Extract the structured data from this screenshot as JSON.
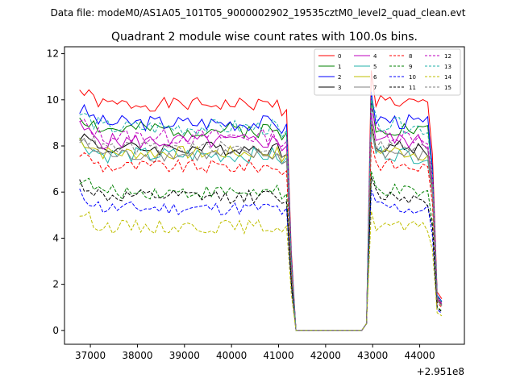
{
  "suptitle": "Data file: modeM0/AS1A05_101T05_9000002902_19535cztM0_level2_quad_clean.evt",
  "chart_data": {
    "type": "line",
    "title": "Quadrant 2 module wise count rates with 100.0s bins.",
    "xlabel": "",
    "ylabel": "",
    "offset_text": "+2.951e8",
    "xlim": [
      36450,
      44950
    ],
    "ylim": [
      -0.6,
      12.3
    ],
    "xticks": [
      37000,
      38000,
      39000,
      40000,
      41000,
      42000,
      43000,
      44000
    ],
    "yticks": [
      0,
      2,
      4,
      6,
      8,
      10,
      12
    ],
    "xtick_labels": [
      "37000",
      "38000",
      "39000",
      "40000",
      "41000",
      "42000",
      "43000",
      "44000"
    ],
    "ytick_labels": [
      "0",
      "2",
      "4",
      "6",
      "8",
      "10",
      "12"
    ],
    "grid": false,
    "legend_position": "top-right",
    "x_start": 36770,
    "bin": 100,
    "series": [
      {
        "name": "0",
        "color": "#ff0000",
        "dash": "solid",
        "level": 9.8,
        "amp": 0.3,
        "seed": 1
      },
      {
        "name": "1",
        "color": "#008000",
        "dash": "solid",
        "level": 8.7,
        "amp": 0.35,
        "seed": 2
      },
      {
        "name": "2",
        "color": "#0000ff",
        "dash": "solid",
        "level": 9.0,
        "amp": 0.35,
        "seed": 3
      },
      {
        "name": "3",
        "color": "#000000",
        "dash": "solid",
        "level": 7.9,
        "amp": 0.3,
        "seed": 4
      },
      {
        "name": "4",
        "color": "#bf00bf",
        "dash": "solid",
        "level": 8.2,
        "amp": 0.35,
        "seed": 5
      },
      {
        "name": "5",
        "color": "#20b2aa",
        "dash": "solid",
        "level": 7.6,
        "amp": 0.35,
        "seed": 6
      },
      {
        "name": "6",
        "color": "#bfbf00",
        "dash": "solid",
        "level": 7.7,
        "amp": 0.3,
        "seed": 7
      },
      {
        "name": "7",
        "color": "#808080",
        "dash": "solid",
        "level": 7.6,
        "amp": 0.3,
        "seed": 8
      },
      {
        "name": "8",
        "color": "#ff0000",
        "dash": "dashed",
        "level": 7.1,
        "amp": 0.3,
        "seed": 9
      },
      {
        "name": "9",
        "color": "#008000",
        "dash": "dashed",
        "level": 6.0,
        "amp": 0.3,
        "seed": 10
      },
      {
        "name": "10",
        "color": "#0000ff",
        "dash": "dashed",
        "level": 5.3,
        "amp": 0.3,
        "seed": 11
      },
      {
        "name": "11",
        "color": "#000000",
        "dash": "dashed",
        "level": 5.8,
        "amp": 0.3,
        "seed": 12
      },
      {
        "name": "12",
        "color": "#bf00bf",
        "dash": "dashed",
        "level": 8.4,
        "amp": 0.35,
        "seed": 13
      },
      {
        "name": "13",
        "color": "#20b2aa",
        "dash": "dashed",
        "level": 8.8,
        "amp": 0.35,
        "seed": 14
      },
      {
        "name": "14",
        "color": "#bfbf00",
        "dash": "dashed",
        "level": 4.5,
        "amp": 0.3,
        "seed": 15
      },
      {
        "name": "15",
        "color": "#808080",
        "dash": "dashed",
        "level": 7.9,
        "amp": 0.3,
        "seed": 16
      }
    ]
  }
}
